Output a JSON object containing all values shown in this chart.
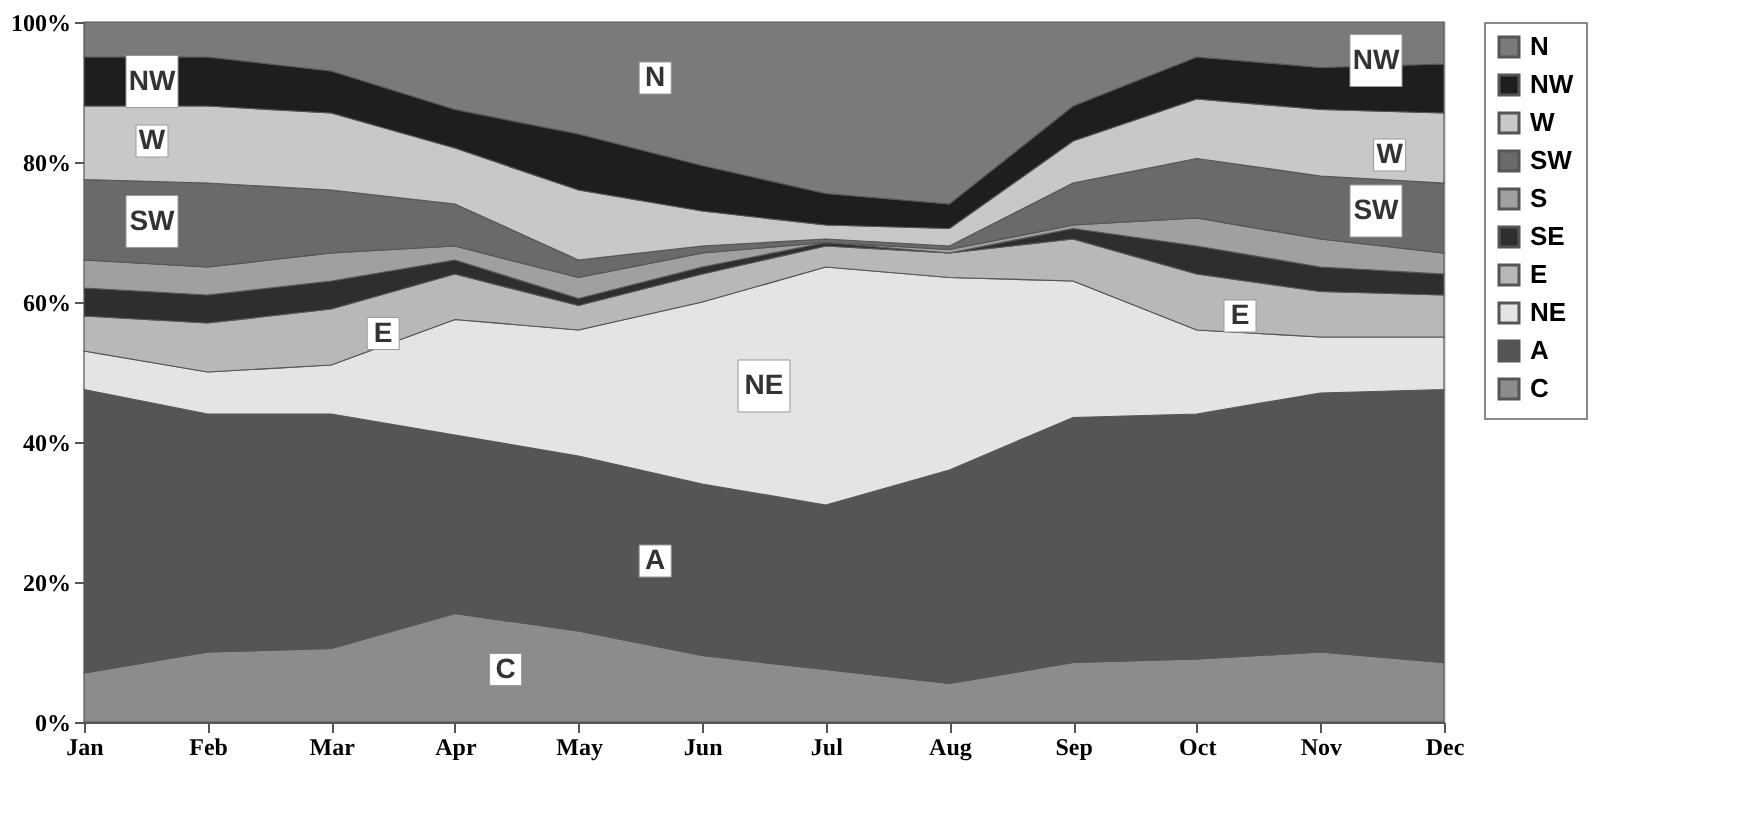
{
  "chart_data": {
    "type": "area",
    "stacked": true,
    "categories": [
      "Jan",
      "Feb",
      "Mar",
      "Apr",
      "May",
      "Jun",
      "Jul",
      "Aug",
      "Sep",
      "Oct",
      "Nov",
      "Dec"
    ],
    "ylim": [
      0,
      100
    ],
    "yticks": [
      {
        "value": 0,
        "label": "0%"
      },
      {
        "value": 20,
        "label": "20%"
      },
      {
        "value": 40,
        "label": "40%"
      },
      {
        "value": 60,
        "label": "60%"
      },
      {
        "value": 80,
        "label": "80%"
      },
      {
        "value": 100,
        "label": "100%"
      }
    ],
    "legend": "right",
    "series": [
      {
        "name": "C",
        "color": "#8c8c8c",
        "values": [
          7,
          10,
          10.5,
          15.5,
          13,
          9.5,
          7.5,
          5.5,
          8.5,
          9,
          10,
          8.5
        ]
      },
      {
        "name": "A",
        "color": "#555555",
        "values": [
          40.5,
          34,
          33.5,
          25.5,
          25,
          24.5,
          23.5,
          30.5,
          35,
          35,
          37,
          39
        ]
      },
      {
        "name": "NE",
        "color": "#e4e4e4",
        "values": [
          5.5,
          6,
          7,
          16.5,
          18,
          26,
          34,
          27.5,
          19.5,
          12,
          8,
          7.5
        ]
      },
      {
        "name": "E",
        "color": "#b8b8b8",
        "values": [
          5,
          7,
          8,
          6.5,
          3.5,
          4,
          3,
          3.5,
          6,
          8,
          6.5,
          6
        ]
      },
      {
        "name": "SE",
        "color": "#2e2e2e",
        "values": [
          4,
          4,
          4,
          2,
          1,
          1,
          0.5,
          0,
          1.5,
          4,
          3.5,
          3
        ]
      },
      {
        "name": "S",
        "color": "#a0a0a0",
        "values": [
          4,
          4,
          4,
          2,
          3,
          2,
          0,
          0.5,
          0.5,
          4,
          4,
          3
        ]
      },
      {
        "name": "SW",
        "color": "#6a6a6a",
        "values": [
          11.5,
          12,
          9,
          6,
          2.5,
          1,
          0.5,
          0.5,
          6,
          8.5,
          9,
          10
        ]
      },
      {
        "name": "W",
        "color": "#c8c8c8",
        "values": [
          10.5,
          11,
          11,
          8,
          10,
          5,
          2,
          2.5,
          6,
          8.5,
          9.5,
          10
        ]
      },
      {
        "name": "NW",
        "color": "#1e1e1e",
        "values": [
          7,
          7,
          6,
          5.5,
          8,
          6.5,
          4.5,
          3.5,
          5,
          6,
          6,
          7
        ]
      },
      {
        "name": "N",
        "color": "#7a7a7a",
        "values": [
          5,
          5,
          7,
          12.5,
          16,
          20.5,
          24.5,
          26,
          12,
          5,
          6.5,
          6
        ]
      }
    ],
    "annotations": [
      "NW",
      "W",
      "SW",
      "E",
      "N",
      "NE",
      "A",
      "C",
      "NW",
      "W",
      "SW",
      "E"
    ]
  }
}
